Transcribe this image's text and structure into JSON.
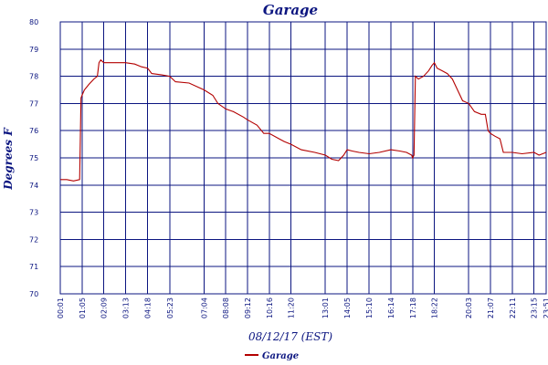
{
  "chart_data": {
    "type": "line",
    "title": "Garage",
    "xlabel": "08/12/17 (EST)",
    "ylabel": "Degrees F",
    "ylim": [
      70,
      80
    ],
    "y_ticks": [
      "70",
      "71",
      "72",
      "73",
      "74",
      "75",
      "76",
      "77",
      "78",
      "79",
      "80"
    ],
    "x_ticks": [
      "00:01",
      "01:05",
      "02:09",
      "03:13",
      "04:18",
      "05:23",
      "07:04",
      "08:08",
      "09:12",
      "10:16",
      "11:20",
      "13:01",
      "14:05",
      "15:10",
      "16:14",
      "17:18",
      "18:22",
      "20:03",
      "21:07",
      "22:11",
      "23:15",
      "23:51"
    ],
    "grid": true,
    "legend_position": "bottom-center",
    "series": [
      {
        "name": "Garage",
        "color": "#b30000",
        "points": [
          [
            "00:01",
            74.2
          ],
          [
            "00:20",
            74.2
          ],
          [
            "00:40",
            74.15
          ],
          [
            "00:58",
            74.2
          ],
          [
            "01:00",
            75.6
          ],
          [
            "01:02",
            77.2
          ],
          [
            "01:05",
            77.3
          ],
          [
            "01:12",
            77.5
          ],
          [
            "01:25",
            77.7
          ],
          [
            "01:40",
            77.9
          ],
          [
            "01:50",
            78.0
          ],
          [
            "01:55",
            78.5
          ],
          [
            "02:00",
            78.6
          ],
          [
            "02:09",
            78.5
          ],
          [
            "02:20",
            78.5
          ],
          [
            "02:40",
            78.5
          ],
          [
            "03:00",
            78.5
          ],
          [
            "03:13",
            78.5
          ],
          [
            "03:40",
            78.45
          ],
          [
            "04:00",
            78.35
          ],
          [
            "04:18",
            78.3
          ],
          [
            "04:30",
            78.1
          ],
          [
            "05:00",
            78.05
          ],
          [
            "05:23",
            78.0
          ],
          [
            "05:40",
            77.8
          ],
          [
            "06:20",
            77.75
          ],
          [
            "07:04",
            77.5
          ],
          [
            "07:30",
            77.3
          ],
          [
            "07:45",
            77.0
          ],
          [
            "08:08",
            76.8
          ],
          [
            "08:30",
            76.7
          ],
          [
            "09:00",
            76.5
          ],
          [
            "09:12",
            76.4
          ],
          [
            "09:40",
            76.2
          ],
          [
            "10:00",
            75.9
          ],
          [
            "10:16",
            75.9
          ],
          [
            "10:45",
            75.7
          ],
          [
            "11:00",
            75.6
          ],
          [
            "11:20",
            75.5
          ],
          [
            "11:50",
            75.3
          ],
          [
            "12:30",
            75.2
          ],
          [
            "13:01",
            75.1
          ],
          [
            "13:20",
            74.95
          ],
          [
            "13:40",
            74.9
          ],
          [
            "13:55",
            75.1
          ],
          [
            "14:05",
            75.3
          ],
          [
            "14:20",
            75.25
          ],
          [
            "14:40",
            75.2
          ],
          [
            "15:10",
            75.15
          ],
          [
            "15:40",
            75.2
          ],
          [
            "16:14",
            75.3
          ],
          [
            "16:40",
            75.25
          ],
          [
            "17:00",
            75.2
          ],
          [
            "17:15",
            75.1
          ],
          [
            "17:18",
            75.0
          ],
          [
            "17:22",
            75.1
          ],
          [
            "17:26",
            78.0
          ],
          [
            "17:35",
            77.9
          ],
          [
            "17:50",
            78.0
          ],
          [
            "18:05",
            78.2
          ],
          [
            "18:15",
            78.4
          ],
          [
            "18:22",
            78.5
          ],
          [
            "18:30",
            78.3
          ],
          [
            "18:45",
            78.2
          ],
          [
            "19:00",
            78.1
          ],
          [
            "19:15",
            77.9
          ],
          [
            "19:30",
            77.5
          ],
          [
            "19:45",
            77.1
          ],
          [
            "20:03",
            77.0
          ],
          [
            "20:20",
            76.7
          ],
          [
            "20:40",
            76.6
          ],
          [
            "20:52",
            76.6
          ],
          [
            "21:00",
            76.0
          ],
          [
            "21:07",
            75.9
          ],
          [
            "21:20",
            75.8
          ],
          [
            "21:35",
            75.7
          ],
          [
            "21:45",
            75.2
          ],
          [
            "22:11",
            75.2
          ],
          [
            "22:40",
            75.15
          ],
          [
            "23:15",
            75.2
          ],
          [
            "23:30",
            75.1
          ],
          [
            "23:51",
            75.2
          ]
        ]
      }
    ]
  },
  "legend": {
    "label": "Garage"
  }
}
